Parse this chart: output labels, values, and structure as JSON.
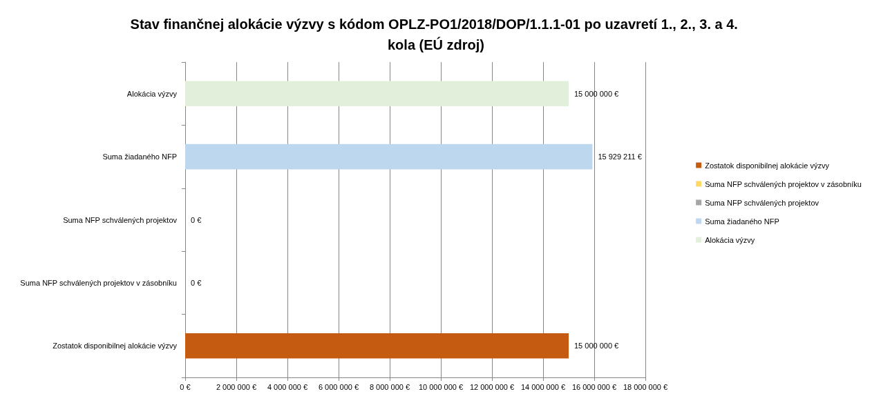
{
  "chart_data": {
    "type": "bar",
    "orientation": "horizontal",
    "title": "Stav finančnej alokácie výzvy s kódom OPLZ-PO1/2018/DOP/1.1.1-01 po uzavretí 1., 2., 3. a 4. kola (EÚ zdroj)",
    "categories": [
      "Alokácia výzvy",
      "Suma žiadaného NFP",
      "Suma NFP schválených projektov",
      "Suma NFP schválených projektov v zásobníku",
      "Zostatok disponibilnej alokácie výzvy"
    ],
    "series": [
      {
        "name": "Zostatok disponibilnej alokácie výzvy",
        "color": "#c55a11",
        "values": [
          null,
          null,
          null,
          null,
          15000000
        ],
        "value_labels": [
          null,
          null,
          null,
          null,
          "15 000 000 €"
        ]
      },
      {
        "name": "Suma NFP schválených projektov v zásobníku",
        "color": "#ffd966",
        "values": [
          null,
          null,
          null,
          0,
          null
        ],
        "value_labels": [
          null,
          null,
          null,
          "0 €",
          null
        ]
      },
      {
        "name": "Suma NFP schválených projektov",
        "color": "#a5a5a5",
        "values": [
          null,
          null,
          0,
          null,
          null
        ],
        "value_labels": [
          null,
          null,
          "0 €",
          null,
          null
        ]
      },
      {
        "name": "Suma žiadaného NFP",
        "color": "#bdd7ee",
        "values": [
          null,
          15929211,
          null,
          null,
          null
        ],
        "value_labels": [
          null,
          "15 929 211 €",
          null,
          null,
          null
        ]
      },
      {
        "name": "Alokácia výzvy",
        "color": "#e2efda",
        "values": [
          15000000,
          null,
          null,
          null,
          null
        ],
        "value_labels": [
          "15 000 000 €",
          null,
          null,
          null,
          null
        ]
      }
    ],
    "xlim": [
      0,
      18000000
    ],
    "xticks": [
      {
        "value": 0,
        "label": "0 €"
      },
      {
        "value": 2000000,
        "label": "2 000 000 €"
      },
      {
        "value": 4000000,
        "label": "4 000 000 €"
      },
      {
        "value": 6000000,
        "label": "6 000 000 €"
      },
      {
        "value": 8000000,
        "label": "8 000 000 €"
      },
      {
        "value": 10000000,
        "label": "10 000 000 €"
      },
      {
        "value": 12000000,
        "label": "12 000 000 €"
      },
      {
        "value": 14000000,
        "label": "14 000 000 €"
      },
      {
        "value": 16000000,
        "label": "16 000 000 €"
      },
      {
        "value": 18000000,
        "label": "18 000 000 €"
      }
    ],
    "grid": "x",
    "legend": "right"
  }
}
